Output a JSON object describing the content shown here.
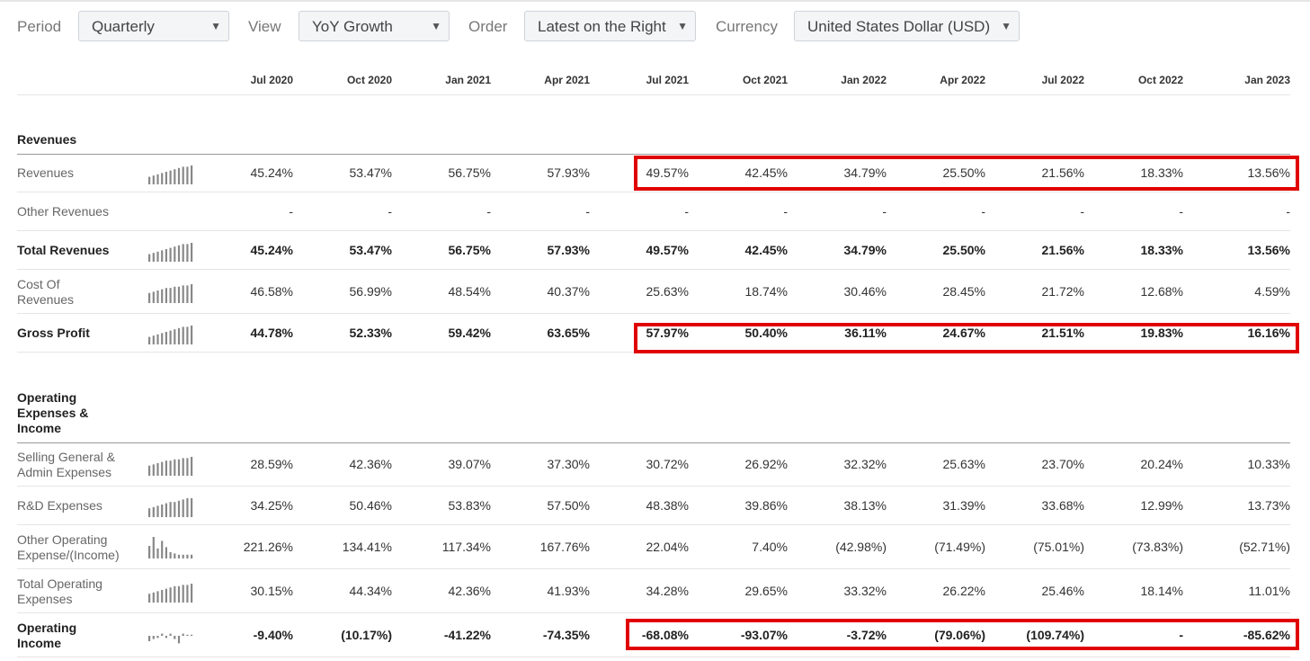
{
  "controls": {
    "period_label": "Period",
    "period_value": "Quarterly",
    "view_label": "View",
    "view_value": "YoY Growth",
    "order_label": "Order",
    "order_value": "Latest on the Right",
    "currency_label": "Currency",
    "currency_value": "United States Dollar (USD)"
  },
  "columns": [
    "Jul 2020",
    "Oct 2020",
    "Jan 2021",
    "Apr 2021",
    "Jul 2021",
    "Oct 2021",
    "Jan 2022",
    "Apr 2022",
    "Jul 2022",
    "Oct 2022",
    "Jan 2023"
  ],
  "sections": {
    "revenues": "Revenues",
    "opex_line1": "Operating",
    "opex_line2": "Expenses &",
    "opex_line3": "Income"
  },
  "rows": [
    {
      "l1": "Revenues",
      "l2": "",
      "values": [
        "45.24%",
        "53.47%",
        "56.75%",
        "57.93%",
        "49.57%",
        "42.45%",
        "34.79%",
        "25.50%",
        "21.56%",
        "18.33%",
        "13.56%"
      ]
    },
    {
      "l1": "Other Revenues",
      "l2": "",
      "values": [
        "-",
        "-",
        "-",
        "-",
        "-",
        "-",
        "-",
        "-",
        "-",
        "-",
        "-"
      ]
    },
    {
      "l1": "Total Revenues",
      "l2": "",
      "values": [
        "45.24%",
        "53.47%",
        "56.75%",
        "57.93%",
        "49.57%",
        "42.45%",
        "34.79%",
        "25.50%",
        "21.56%",
        "18.33%",
        "13.56%"
      ]
    },
    {
      "l1": "Cost Of",
      "l2": "Revenues",
      "values": [
        "46.58%",
        "56.99%",
        "48.54%",
        "40.37%",
        "25.63%",
        "18.74%",
        "30.46%",
        "28.45%",
        "21.72%",
        "12.68%",
        "4.59%"
      ]
    },
    {
      "l1": "Gross Profit",
      "l2": "",
      "values": [
        "44.78%",
        "52.33%",
        "59.42%",
        "63.65%",
        "57.97%",
        "50.40%",
        "36.11%",
        "24.67%",
        "21.51%",
        "19.83%",
        "16.16%"
      ]
    },
    {
      "l1": "Selling General &",
      "l2": "Admin Expenses",
      "values": [
        "28.59%",
        "42.36%",
        "39.07%",
        "37.30%",
        "30.72%",
        "26.92%",
        "32.32%",
        "25.63%",
        "23.70%",
        "20.24%",
        "10.33%"
      ]
    },
    {
      "l1": "R&D Expenses",
      "l2": "",
      "values": [
        "34.25%",
        "50.46%",
        "53.83%",
        "57.50%",
        "48.38%",
        "39.86%",
        "38.13%",
        "31.39%",
        "33.68%",
        "12.99%",
        "13.73%"
      ]
    },
    {
      "l1": "Other Operating",
      "l2": "Expense/(Income)",
      "values": [
        "221.26%",
        "134.41%",
        "117.34%",
        "167.76%",
        "22.04%",
        "7.40%",
        "(42.98%)",
        "(71.49%)",
        "(75.01%)",
        "(73.83%)",
        "(52.71%)"
      ]
    },
    {
      "l1": "Total Operating",
      "l2": "Expenses",
      "values": [
        "30.15%",
        "44.34%",
        "42.36%",
        "41.93%",
        "34.28%",
        "29.65%",
        "33.32%",
        "26.22%",
        "25.46%",
        "18.14%",
        "11.01%"
      ]
    },
    {
      "l1": "Operating",
      "l2": "Income",
      "values": [
        "-9.40%",
        "(10.17%)",
        "-41.22%",
        "-74.35%",
        "-68.08%",
        "-93.07%",
        "-3.72%",
        "(79.06%)",
        "(109.74%)",
        "-",
        "-85.62%"
      ]
    }
  ],
  "colors": {
    "highlight": "#e00000",
    "spark": "#888888"
  }
}
